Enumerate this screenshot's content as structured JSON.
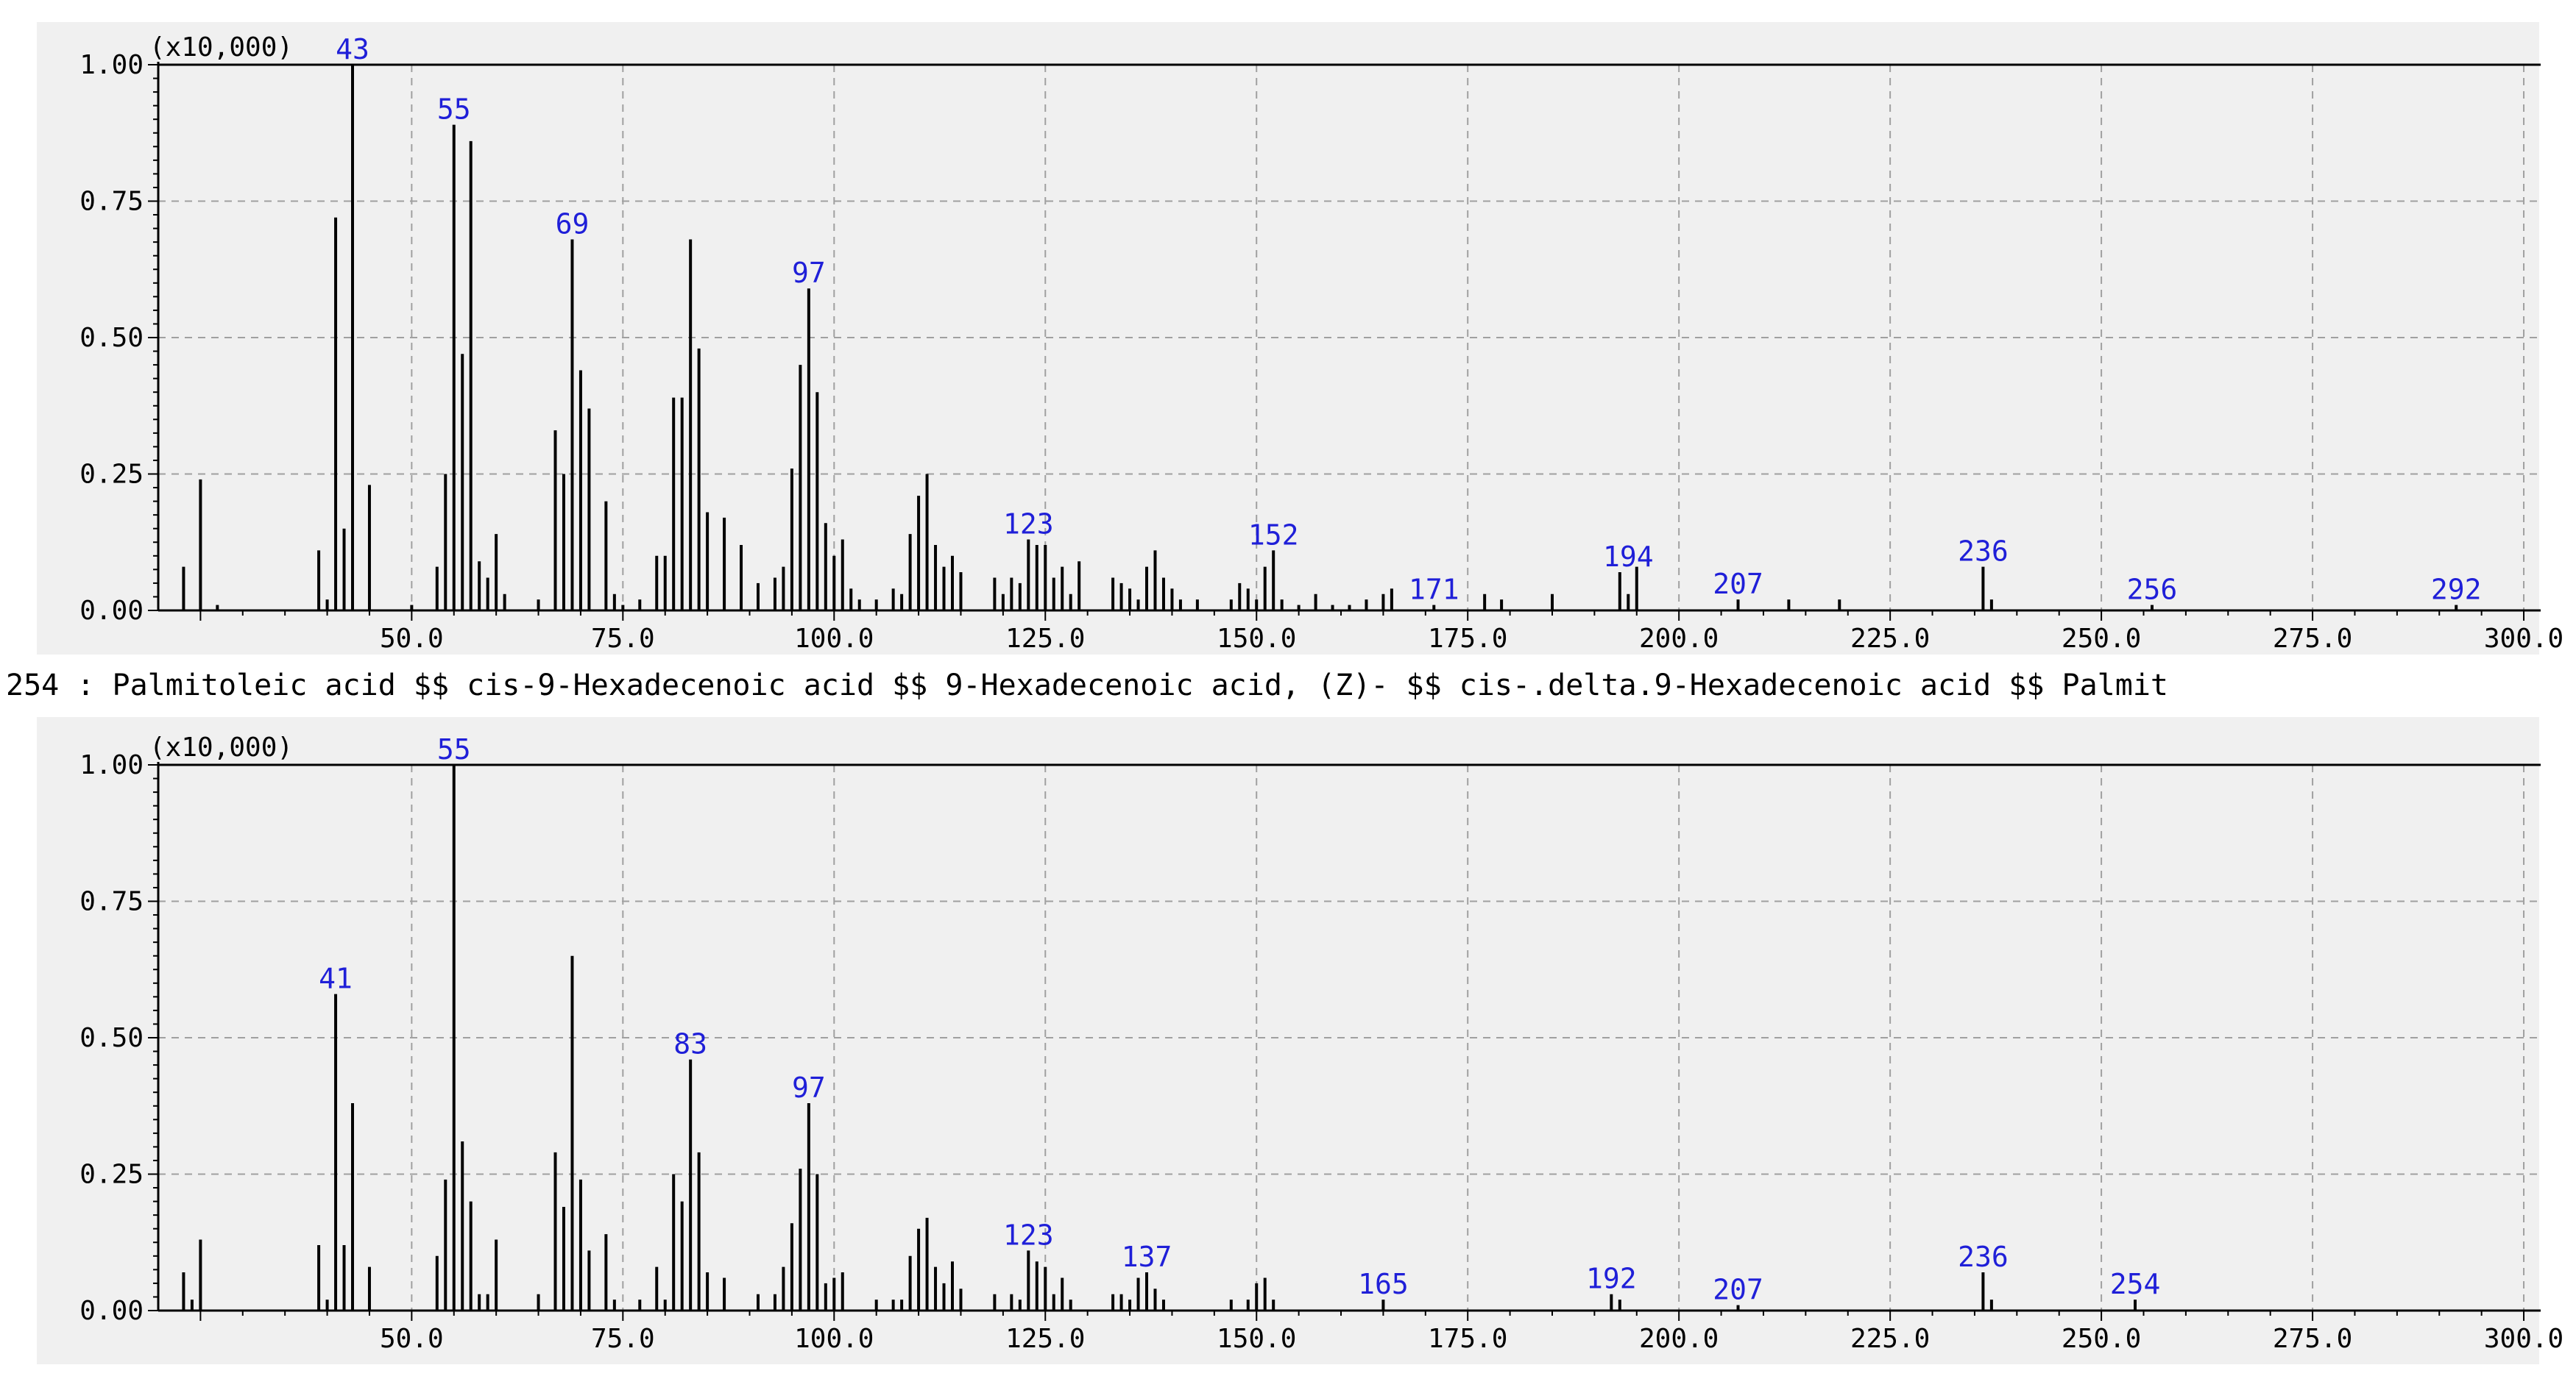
{
  "caption": "254 : Palmitoleic acid $$ cis-9-Hexadecenoic acid $$ 9-Hexadecenoic acid, (Z)- $$ cis-.delta.9-Hexadecenoic acid $$ Palmit",
  "colors": {
    "bar": "#000000",
    "peak_label": "#1f1fd8",
    "grid": "#a0a0a0",
    "panel_bg": "#f0f0f0"
  },
  "chart_data": [
    {
      "type": "bar",
      "name": "top-spectrum",
      "scale_label": "(x10,000)",
      "xlim": [
        20,
        302
      ],
      "ylim": [
        0,
        1.0
      ],
      "x_ticks": [
        "50.0",
        "75.0",
        "100.0",
        "125.0",
        "150.0",
        "175.0",
        "200.0",
        "225.0",
        "250.0",
        "275.0",
        "300.0"
      ],
      "x_tick_values": [
        50,
        75,
        100,
        125,
        150,
        175,
        200,
        225,
        250,
        275,
        300
      ],
      "y_ticks": [
        "0.00",
        "0.25",
        "0.50",
        "0.75",
        "1.00"
      ],
      "y_tick_values": [
        0,
        0.25,
        0.5,
        0.75,
        1.0
      ],
      "peaks": [
        {
          "x": 23,
          "y": 0.08
        },
        {
          "x": 25,
          "y": 0.24
        },
        {
          "x": 27,
          "y": 0.01
        },
        {
          "x": 39,
          "y": 0.11
        },
        {
          "x": 40,
          "y": 0.02
        },
        {
          "x": 41,
          "y": 0.72
        },
        {
          "x": 42,
          "y": 0.15
        },
        {
          "x": 43,
          "y": 1.0
        },
        {
          "x": 45,
          "y": 0.23
        },
        {
          "x": 50,
          "y": 0.01
        },
        {
          "x": 53,
          "y": 0.08
        },
        {
          "x": 54,
          "y": 0.25
        },
        {
          "x": 55,
          "y": 0.89
        },
        {
          "x": 56,
          "y": 0.47
        },
        {
          "x": 57,
          "y": 0.86
        },
        {
          "x": 58,
          "y": 0.09
        },
        {
          "x": 59,
          "y": 0.06
        },
        {
          "x": 60,
          "y": 0.14
        },
        {
          "x": 61,
          "y": 0.03
        },
        {
          "x": 65,
          "y": 0.02
        },
        {
          "x": 67,
          "y": 0.33
        },
        {
          "x": 68,
          "y": 0.25
        },
        {
          "x": 69,
          "y": 0.68
        },
        {
          "x": 70,
          "y": 0.44
        },
        {
          "x": 71,
          "y": 0.37
        },
        {
          "x": 73,
          "y": 0.2
        },
        {
          "x": 74,
          "y": 0.03
        },
        {
          "x": 75,
          "y": 0.01
        },
        {
          "x": 77,
          "y": 0.02
        },
        {
          "x": 79,
          "y": 0.1
        },
        {
          "x": 80,
          "y": 0.1
        },
        {
          "x": 81,
          "y": 0.39
        },
        {
          "x": 82,
          "y": 0.39
        },
        {
          "x": 83,
          "y": 0.68
        },
        {
          "x": 84,
          "y": 0.48
        },
        {
          "x": 85,
          "y": 0.18
        },
        {
          "x": 87,
          "y": 0.17
        },
        {
          "x": 89,
          "y": 0.12
        },
        {
          "x": 91,
          "y": 0.05
        },
        {
          "x": 93,
          "y": 0.06
        },
        {
          "x": 94,
          "y": 0.08
        },
        {
          "x": 95,
          "y": 0.26
        },
        {
          "x": 96,
          "y": 0.45
        },
        {
          "x": 97,
          "y": 0.59
        },
        {
          "x": 98,
          "y": 0.4
        },
        {
          "x": 99,
          "y": 0.16
        },
        {
          "x": 100,
          "y": 0.1
        },
        {
          "x": 101,
          "y": 0.13
        },
        {
          "x": 102,
          "y": 0.04
        },
        {
          "x": 103,
          "y": 0.02
        },
        {
          "x": 105,
          "y": 0.02
        },
        {
          "x": 107,
          "y": 0.04
        },
        {
          "x": 108,
          "y": 0.03
        },
        {
          "x": 109,
          "y": 0.14
        },
        {
          "x": 110,
          "y": 0.21
        },
        {
          "x": 111,
          "y": 0.25
        },
        {
          "x": 112,
          "y": 0.12
        },
        {
          "x": 113,
          "y": 0.08
        },
        {
          "x": 114,
          "y": 0.1
        },
        {
          "x": 115,
          "y": 0.07
        },
        {
          "x": 119,
          "y": 0.06
        },
        {
          "x": 120,
          "y": 0.03
        },
        {
          "x": 121,
          "y": 0.06
        },
        {
          "x": 122,
          "y": 0.05
        },
        {
          "x": 123,
          "y": 0.13
        },
        {
          "x": 124,
          "y": 0.12
        },
        {
          "x": 125,
          "y": 0.12
        },
        {
          "x": 126,
          "y": 0.06
        },
        {
          "x": 127,
          "y": 0.08
        },
        {
          "x": 128,
          "y": 0.03
        },
        {
          "x": 129,
          "y": 0.09
        },
        {
          "x": 133,
          "y": 0.06
        },
        {
          "x": 134,
          "y": 0.05
        },
        {
          "x": 135,
          "y": 0.04
        },
        {
          "x": 136,
          "y": 0.02
        },
        {
          "x": 137,
          "y": 0.08
        },
        {
          "x": 138,
          "y": 0.11
        },
        {
          "x": 139,
          "y": 0.06
        },
        {
          "x": 140,
          "y": 0.04
        },
        {
          "x": 141,
          "y": 0.02
        },
        {
          "x": 143,
          "y": 0.02
        },
        {
          "x": 147,
          "y": 0.02
        },
        {
          "x": 148,
          "y": 0.05
        },
        {
          "x": 149,
          "y": 0.04
        },
        {
          "x": 150,
          "y": 0.02
        },
        {
          "x": 151,
          "y": 0.08
        },
        {
          "x": 152,
          "y": 0.11
        },
        {
          "x": 153,
          "y": 0.02
        },
        {
          "x": 155,
          "y": 0.01
        },
        {
          "x": 157,
          "y": 0.03
        },
        {
          "x": 159,
          "y": 0.01
        },
        {
          "x": 161,
          "y": 0.01
        },
        {
          "x": 163,
          "y": 0.02
        },
        {
          "x": 165,
          "y": 0.03
        },
        {
          "x": 166,
          "y": 0.04
        },
        {
          "x": 171,
          "y": 0.01
        },
        {
          "x": 177,
          "y": 0.03
        },
        {
          "x": 179,
          "y": 0.02
        },
        {
          "x": 185,
          "y": 0.03
        },
        {
          "x": 193,
          "y": 0.07
        },
        {
          "x": 194,
          "y": 0.03
        },
        {
          "x": 195,
          "y": 0.08
        },
        {
          "x": 207,
          "y": 0.02
        },
        {
          "x": 213,
          "y": 0.02
        },
        {
          "x": 219,
          "y": 0.02
        },
        {
          "x": 236,
          "y": 0.08
        },
        {
          "x": 237,
          "y": 0.02
        },
        {
          "x": 256,
          "y": 0.01
        },
        {
          "x": 292,
          "y": 0.01
        }
      ],
      "annotations": [
        {
          "label": "43",
          "x": 43,
          "y": 1.0
        },
        {
          "label": "55",
          "x": 55,
          "y": 0.89
        },
        {
          "label": "69",
          "x": 69,
          "y": 0.68
        },
        {
          "label": "97",
          "x": 97,
          "y": 0.59
        },
        {
          "label": "123",
          "x": 123,
          "y": 0.13
        },
        {
          "label": "152",
          "x": 152,
          "y": 0.11
        },
        {
          "label": "171",
          "x": 171,
          "y": 0.01
        },
        {
          "label": "194",
          "x": 194,
          "y": 0.07
        },
        {
          "label": "207",
          "x": 207,
          "y": 0.02
        },
        {
          "label": "236",
          "x": 236,
          "y": 0.08
        },
        {
          "label": "256",
          "x": 256,
          "y": 0.01
        },
        {
          "label": "292",
          "x": 292,
          "y": 0.01
        }
      ]
    },
    {
      "type": "bar",
      "name": "bottom-spectrum",
      "scale_label": "(x10,000)",
      "xlim": [
        20,
        302
      ],
      "ylim": [
        0,
        1.0
      ],
      "x_ticks": [
        "50.0",
        "75.0",
        "100.0",
        "125.0",
        "150.0",
        "175.0",
        "200.0",
        "225.0",
        "250.0",
        "275.0",
        "300.0"
      ],
      "x_tick_values": [
        50,
        75,
        100,
        125,
        150,
        175,
        200,
        225,
        250,
        275,
        300
      ],
      "y_ticks": [
        "0.00",
        "0.25",
        "0.50",
        "0.75",
        "1.00"
      ],
      "y_tick_values": [
        0,
        0.25,
        0.5,
        0.75,
        1.0
      ],
      "peaks": [
        {
          "x": 23,
          "y": 0.07
        },
        {
          "x": 24,
          "y": 0.02
        },
        {
          "x": 25,
          "y": 0.13
        },
        {
          "x": 39,
          "y": 0.12
        },
        {
          "x": 40,
          "y": 0.02
        },
        {
          "x": 41,
          "y": 0.58
        },
        {
          "x": 42,
          "y": 0.12
        },
        {
          "x": 43,
          "y": 0.38
        },
        {
          "x": 45,
          "y": 0.08
        },
        {
          "x": 53,
          "y": 0.1
        },
        {
          "x": 54,
          "y": 0.24
        },
        {
          "x": 55,
          "y": 1.0
        },
        {
          "x": 56,
          "y": 0.31
        },
        {
          "x": 57,
          "y": 0.2
        },
        {
          "x": 58,
          "y": 0.03
        },
        {
          "x": 59,
          "y": 0.03
        },
        {
          "x": 60,
          "y": 0.13
        },
        {
          "x": 65,
          "y": 0.03
        },
        {
          "x": 67,
          "y": 0.29
        },
        {
          "x": 68,
          "y": 0.19
        },
        {
          "x": 69,
          "y": 0.65
        },
        {
          "x": 70,
          "y": 0.24
        },
        {
          "x": 71,
          "y": 0.11
        },
        {
          "x": 73,
          "y": 0.14
        },
        {
          "x": 74,
          "y": 0.02
        },
        {
          "x": 77,
          "y": 0.02
        },
        {
          "x": 79,
          "y": 0.08
        },
        {
          "x": 80,
          "y": 0.02
        },
        {
          "x": 81,
          "y": 0.25
        },
        {
          "x": 82,
          "y": 0.2
        },
        {
          "x": 83,
          "y": 0.46
        },
        {
          "x": 84,
          "y": 0.29
        },
        {
          "x": 85,
          "y": 0.07
        },
        {
          "x": 87,
          "y": 0.06
        },
        {
          "x": 91,
          "y": 0.03
        },
        {
          "x": 93,
          "y": 0.03
        },
        {
          "x": 94,
          "y": 0.08
        },
        {
          "x": 95,
          "y": 0.16
        },
        {
          "x": 96,
          "y": 0.26
        },
        {
          "x": 97,
          "y": 0.38
        },
        {
          "x": 98,
          "y": 0.25
        },
        {
          "x": 99,
          "y": 0.05
        },
        {
          "x": 100,
          "y": 0.06
        },
        {
          "x": 101,
          "y": 0.07
        },
        {
          "x": 105,
          "y": 0.02
        },
        {
          "x": 107,
          "y": 0.02
        },
        {
          "x": 108,
          "y": 0.02
        },
        {
          "x": 109,
          "y": 0.1
        },
        {
          "x": 110,
          "y": 0.15
        },
        {
          "x": 111,
          "y": 0.17
        },
        {
          "x": 112,
          "y": 0.08
        },
        {
          "x": 113,
          "y": 0.05
        },
        {
          "x": 114,
          "y": 0.09
        },
        {
          "x": 115,
          "y": 0.04
        },
        {
          "x": 119,
          "y": 0.03
        },
        {
          "x": 121,
          "y": 0.03
        },
        {
          "x": 122,
          "y": 0.02
        },
        {
          "x": 123,
          "y": 0.11
        },
        {
          "x": 124,
          "y": 0.09
        },
        {
          "x": 125,
          "y": 0.08
        },
        {
          "x": 126,
          "y": 0.03
        },
        {
          "x": 127,
          "y": 0.06
        },
        {
          "x": 128,
          "y": 0.02
        },
        {
          "x": 133,
          "y": 0.03
        },
        {
          "x": 134,
          "y": 0.03
        },
        {
          "x": 135,
          "y": 0.02
        },
        {
          "x": 136,
          "y": 0.06
        },
        {
          "x": 137,
          "y": 0.07
        },
        {
          "x": 138,
          "y": 0.04
        },
        {
          "x": 139,
          "y": 0.02
        },
        {
          "x": 147,
          "y": 0.02
        },
        {
          "x": 149,
          "y": 0.02
        },
        {
          "x": 150,
          "y": 0.05
        },
        {
          "x": 151,
          "y": 0.06
        },
        {
          "x": 152,
          "y": 0.02
        },
        {
          "x": 165,
          "y": 0.02
        },
        {
          "x": 192,
          "y": 0.03
        },
        {
          "x": 193,
          "y": 0.02
        },
        {
          "x": 207,
          "y": 0.01
        },
        {
          "x": 236,
          "y": 0.07
        },
        {
          "x": 237,
          "y": 0.02
        },
        {
          "x": 254,
          "y": 0.02
        }
      ],
      "annotations": [
        {
          "label": "41",
          "x": 41,
          "y": 0.58
        },
        {
          "label": "55",
          "x": 55,
          "y": 1.0
        },
        {
          "label": "83",
          "x": 83,
          "y": 0.46
        },
        {
          "label": "97",
          "x": 97,
          "y": 0.38
        },
        {
          "label": "123",
          "x": 123,
          "y": 0.11
        },
        {
          "label": "137",
          "x": 137,
          "y": 0.07
        },
        {
          "label": "165",
          "x": 165,
          "y": 0.02
        },
        {
          "label": "192",
          "x": 192,
          "y": 0.03
        },
        {
          "label": "207",
          "x": 207,
          "y": 0.01
        },
        {
          "label": "236",
          "x": 236,
          "y": 0.07
        },
        {
          "label": "254",
          "x": 254,
          "y": 0.02
        }
      ]
    }
  ]
}
